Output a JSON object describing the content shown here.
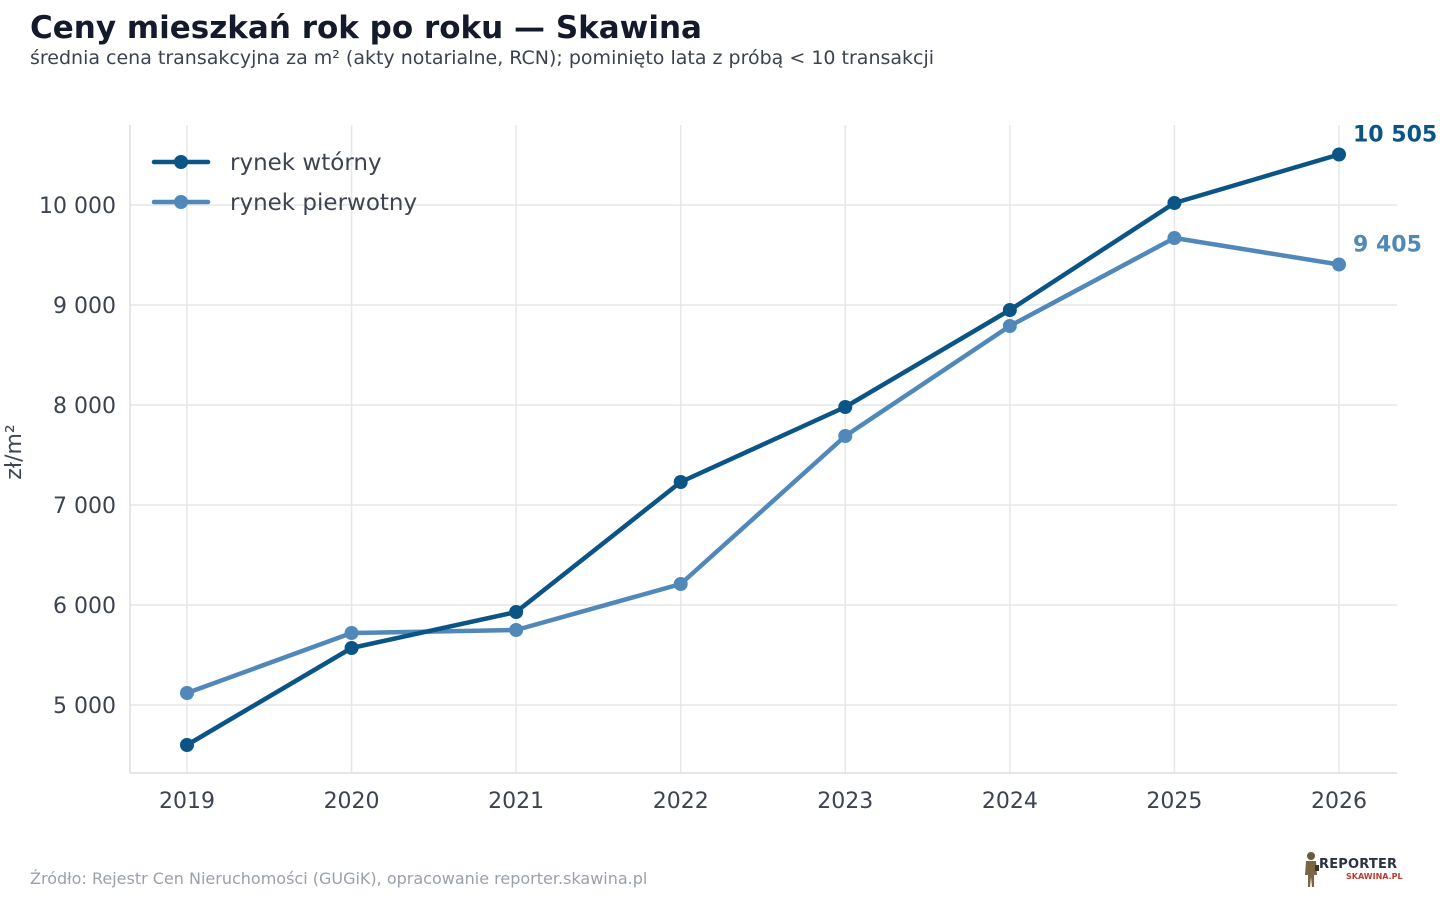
{
  "header": {
    "title": "Ceny mieszkań rok po roku — Skawina",
    "subtitle": "średnia cena transakcyjna za m² (akty notarialne, RCN); pominięto lata z próbą < 10 transakcji"
  },
  "chart_data": {
    "type": "line",
    "x": [
      "2019",
      "2020",
      "2021",
      "2022",
      "2023",
      "2024",
      "2025",
      "2026"
    ],
    "ylabel": "zł/m²",
    "ylim": [
      4400,
      11200
    ],
    "yticks": [
      5000,
      6000,
      7000,
      8000,
      9000,
      10000
    ],
    "ytick_labels": [
      "5 000",
      "6 000",
      "7 000",
      "8 000",
      "9 000",
      "10 000"
    ],
    "grid": true,
    "legend_position": "top-left",
    "series": [
      {
        "name": "rynek wtórny",
        "color": "#0b5486",
        "values": [
          4600,
          5570,
          5930,
          7230,
          7980,
          8950,
          10020,
          10505
        ],
        "end_label": "10 505"
      },
      {
        "name": "rynek pierwotny",
        "color": "#5088b9",
        "values": [
          5120,
          5720,
          5750,
          6210,
          7690,
          8790,
          9670,
          9405
        ],
        "end_label": "9 405"
      }
    ]
  },
  "footer": {
    "source": "Źródło: Rejestr Cen Nieruchomości (GUGiK), opracowanie reporter.skawina.pl",
    "logo_top": "REPORTER",
    "logo_bottom": "SKAWINA.PL"
  }
}
